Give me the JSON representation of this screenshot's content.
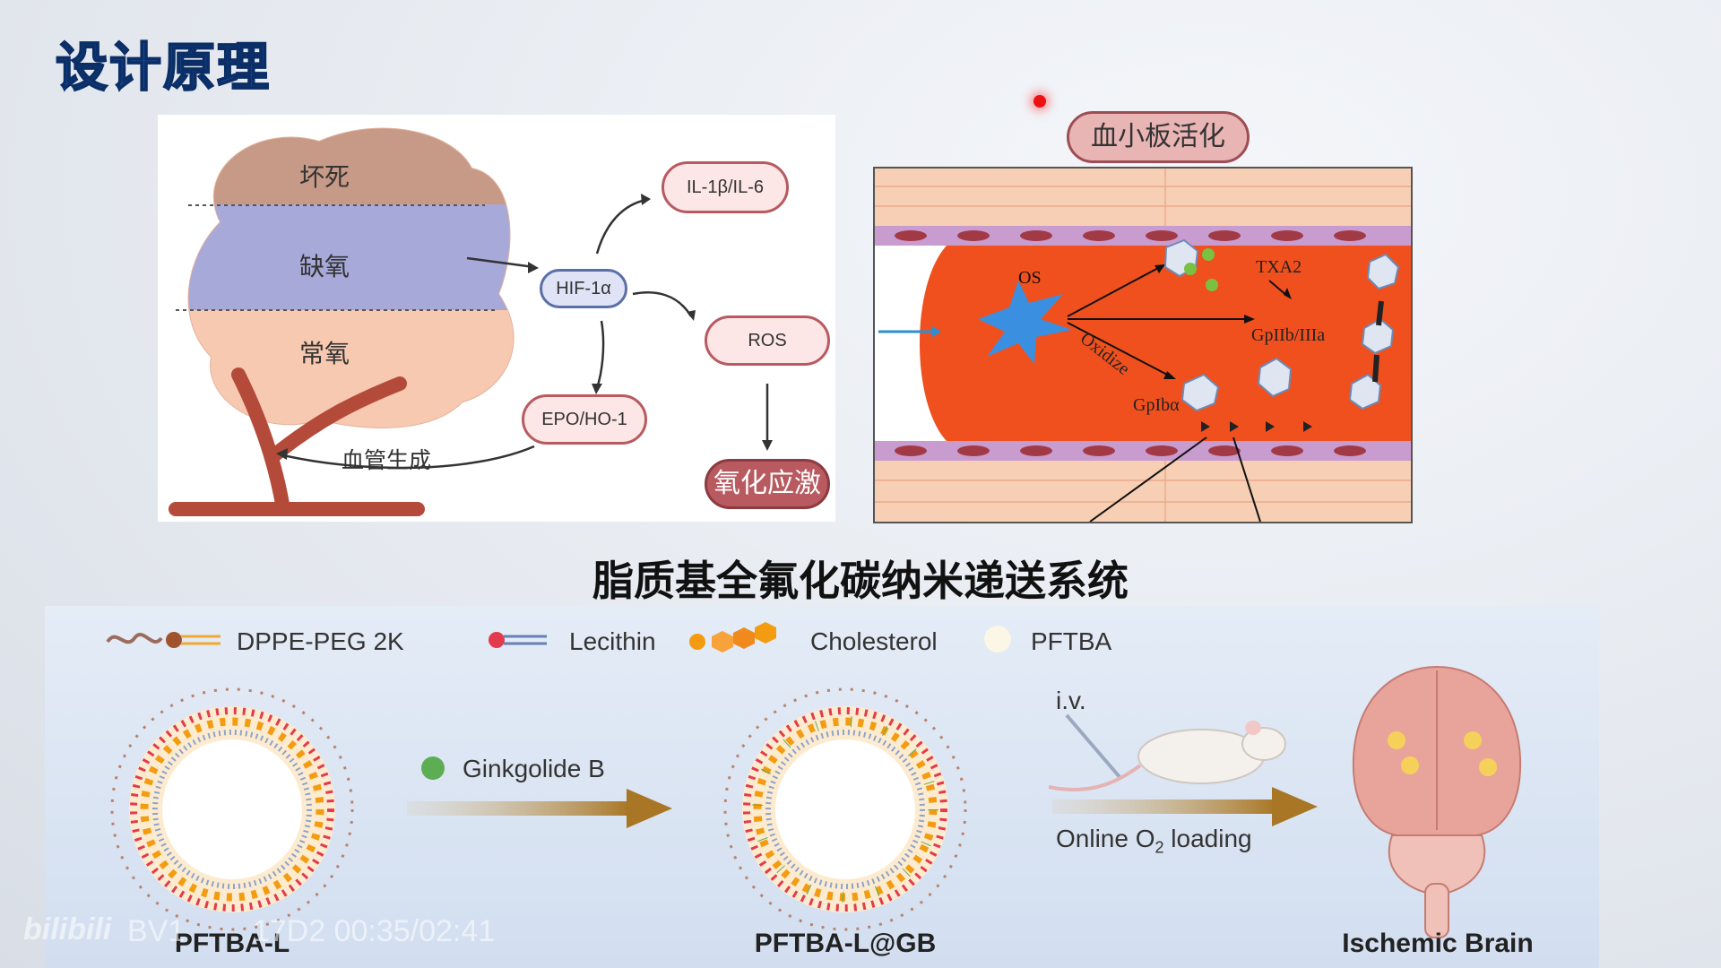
{
  "slide_title": "设计原理",
  "left_diagram": {
    "zones": [
      "坏死",
      "缺氧",
      "常氧"
    ],
    "hub": "HIF-1α",
    "nodes": {
      "il": "IL-1β/IL-6",
      "ros": "ROS",
      "epo": "EPO/HO-1",
      "stress": "氧化应激"
    },
    "angiogenesis": "血管生成"
  },
  "right_diagram": {
    "badge": "血小板活化",
    "labels": {
      "os": "OS",
      "txa2": "TXA2",
      "gp2b3a": "GpIIb/IIIa",
      "oxidize": "Oxidize",
      "gp1ba": "GpIbα"
    }
  },
  "headline": "脂质基全氟化碳纳米递送系统",
  "legend": [
    {
      "label": "DPPE-PEG 2K",
      "icon": "peg-lipid-icon"
    },
    {
      "label": "Lecithin",
      "icon": "lecithin-icon"
    },
    {
      "label": "Cholesterol",
      "icon": "cholesterol-icon"
    },
    {
      "label": "PFTBA",
      "icon": "pftba-dot-icon"
    }
  ],
  "ginkgolide": "Ginkgolide B",
  "iv": "i.v.",
  "o2_prefix": "Online O",
  "o2_sub": "2",
  "o2_suffix": " loading",
  "captions": {
    "left": "PFTBA-L",
    "middle": "PFTBA-L@GB",
    "right": "Ischemic Brain"
  },
  "watermark": {
    "logo": "bilibili",
    "line": "BV1        17D2 00:35/02:41"
  },
  "colors": {
    "title": "#1a4f9a",
    "pill_red": "#b85a5f",
    "vessel": "#f0501e",
    "arrow": "#a87624"
  }
}
